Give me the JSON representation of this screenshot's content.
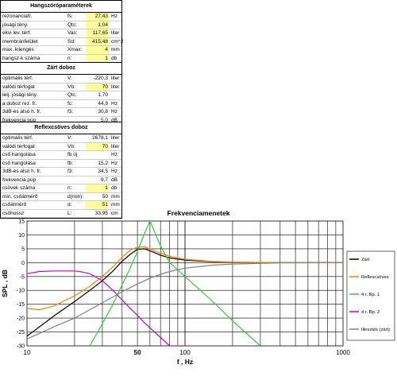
{
  "tables": [
    {
      "title": "Hangszóróparaméterek",
      "rows": [
        {
          "label": "rezonanciafr.",
          "sym": "fs:",
          "value": "27,43",
          "unit": "Hz",
          "hl": "yellow"
        },
        {
          "label": "jósági tény.",
          "sym": "Qts:",
          "value": "1,04",
          "unit": "",
          "hl": "yellow"
        },
        {
          "label": "ekvi lev. térf.",
          "sym": "Vas:",
          "value": "117,65",
          "unit": "liter",
          "hl": "yellow"
        },
        {
          "label": "membránfelület",
          "sym": "Sd:",
          "value": "415,48",
          "unit": "cm^2",
          "hl": "yellow"
        },
        {
          "label": "max. kilengés",
          "sym": "Xmax:",
          "value": "4",
          "unit": "mm",
          "hl": "yellow"
        },
        {
          "label": "hangsz-k száma",
          "sym": "n:",
          "value": "1",
          "unit": "db",
          "hl": "yellow"
        }
      ]
    },
    {
      "title": "Zárt doboz",
      "rows": [
        {
          "label": "optimális térf.",
          "sym": "V:",
          "value": "-220,3",
          "unit": "liter",
          "hl": ""
        },
        {
          "label": "valódi térfogat",
          "sym": "Vb:",
          "value": "70",
          "unit": "liter",
          "hl": "yellow"
        },
        {
          "label": "telj. jósági tény.",
          "sym": "Qtc:",
          "value": "1,70",
          "unit": "",
          "hl": ""
        },
        {
          "label": "a doboz rez. fr.",
          "sym": "fc:",
          "value": "44,9",
          "unit": "Hz",
          "hl": ""
        },
        {
          "label": "3dB-es alsó h. fr.",
          "sym": "f3:",
          "value": "30,8",
          "unit": "Hz",
          "hl": ""
        },
        {
          "label": "frekvencia púp",
          "sym": "",
          "value": "5,0",
          "unit": "dB",
          "hl": ""
        }
      ]
    },
    {
      "title": "Reflexcsöves doboz",
      "rows": [
        {
          "label": "optimális térf.",
          "sym": "V:",
          "value": "2678,1",
          "unit": "liter",
          "hl": ""
        },
        {
          "label": "valódi térfogat",
          "sym": "Vb:",
          "value": "70",
          "unit": "liter",
          "hl": "yellow"
        },
        {
          "label": "cső hangolása",
          "sym": "fb új",
          "value": "",
          "unit": "Hz",
          "hl": "teal"
        },
        {
          "label": "cső hangolása",
          "sym": "fb:",
          "value": "15,2",
          "unit": "Hz",
          "hl": ""
        },
        {
          "label": "3dB-es alsó h. fr.",
          "sym": "f3:",
          "value": "34,5",
          "unit": "Hz",
          "hl": ""
        },
        {
          "label": "frekvencia púp",
          "sym": "",
          "value": "9,7",
          "unit": "dB",
          "hl": ""
        },
        {
          "label": "csövek száma",
          "sym": "n:",
          "value": "1",
          "unit": "db",
          "hl": "yellow"
        },
        {
          "label": "min. csőátmérő",
          "sym": "d(min):",
          "value": "50",
          "unit": "mm",
          "hl": ""
        },
        {
          "label": "csőátmérő",
          "sym": "d:",
          "value": "51",
          "unit": "mm",
          "hl": "yellow"
        },
        {
          "label": "csőhossz",
          "sym": "L:",
          "value": "33,95",
          "unit": "cm",
          "hl": ""
        }
      ]
    }
  ],
  "chart_data": {
    "type": "line",
    "title": "Frekvenciamenetek",
    "xlabel": "f , Hz",
    "ylabel": "SPL , dB",
    "xscale": "log",
    "xlim": [
      10,
      1000
    ],
    "ylim": [
      -30,
      15
    ],
    "yticks": [
      -30,
      -25,
      -20,
      -15,
      -10,
      -5,
      0,
      5,
      10,
      15
    ],
    "xtick_labels": [
      {
        "x": 10,
        "label": "10"
      },
      {
        "x": 50,
        "label": "50"
      },
      {
        "x": 100,
        "label": "100"
      },
      {
        "x": 1000,
        "label": "1000"
      }
    ],
    "legend_position": "right",
    "series": [
      {
        "name": "Zárt",
        "color": "#000000",
        "x": [
          10,
          15,
          20,
          25,
          30,
          35,
          40,
          45,
          50,
          55,
          60,
          70,
          80,
          100,
          150,
          200,
          400,
          1000
        ],
        "y": [
          -26.5,
          -19,
          -14,
          -10,
          -6.5,
          -3,
          0.5,
          3,
          4.8,
          5,
          4.3,
          2.7,
          1.7,
          0.9,
          0.3,
          0.1,
          0,
          0
        ]
      },
      {
        "name": "Reflexcsöves",
        "color": "#ff8000",
        "x": [
          10,
          12,
          15,
          18,
          20,
          25,
          30,
          35,
          40,
          45,
          50,
          55,
          60,
          70,
          80,
          100,
          150,
          200,
          400,
          1000
        ],
        "y": [
          -16.5,
          -17,
          -15.5,
          -13.2,
          -12,
          -8.5,
          -5,
          -1.5,
          2,
          4.5,
          5.6,
          5.7,
          5,
          3.4,
          2.3,
          1.2,
          0.4,
          0.2,
          0,
          0
        ]
      },
      {
        "name": "4 r. Bp. 1",
        "color": "#33cc33",
        "x": [
          25,
          30,
          35,
          40,
          45,
          50,
          55,
          60
        ],
        "y": [
          -30,
          -22,
          -15,
          -8,
          -2,
          4,
          10,
          15
        ]
      },
      {
        "name": "4 r. Bp. 2",
        "color": "#cc00cc",
        "x": [
          10,
          12,
          15,
          18,
          20,
          22,
          25,
          30,
          35,
          40,
          45,
          50,
          55,
          60,
          70,
          80,
          100
        ],
        "y": [
          -4,
          -3.2,
          -3,
          -3,
          -3,
          -3.3,
          -4,
          -6.5,
          -10,
          -13.5,
          -16.5,
          -19,
          -21.5,
          -23.5,
          -27,
          -30,
          -30
        ]
      },
      {
        "name": "Illesztés (zárt)",
        "color": "#808080",
        "x": [
          10,
          15,
          20,
          30,
          40,
          50,
          60,
          70,
          80,
          100,
          150,
          200,
          400,
          1000
        ],
        "y": [
          -27.5,
          -23,
          -20,
          -14.5,
          -10.5,
          -7.7,
          -5.6,
          -4.2,
          -3.2,
          -2,
          -0.9,
          -0.5,
          -0.1,
          0
        ]
      }
    ],
    "extra_lines": [
      {
        "name": "4 r. Bp. 1 (hp)",
        "color": "#33cc33",
        "x": [
          60,
          70,
          80,
          100,
          150,
          200,
          250,
          300
        ],
        "y": [
          15,
          6,
          0,
          -5,
          -14,
          -21,
          -26,
          -30
        ]
      }
    ]
  }
}
